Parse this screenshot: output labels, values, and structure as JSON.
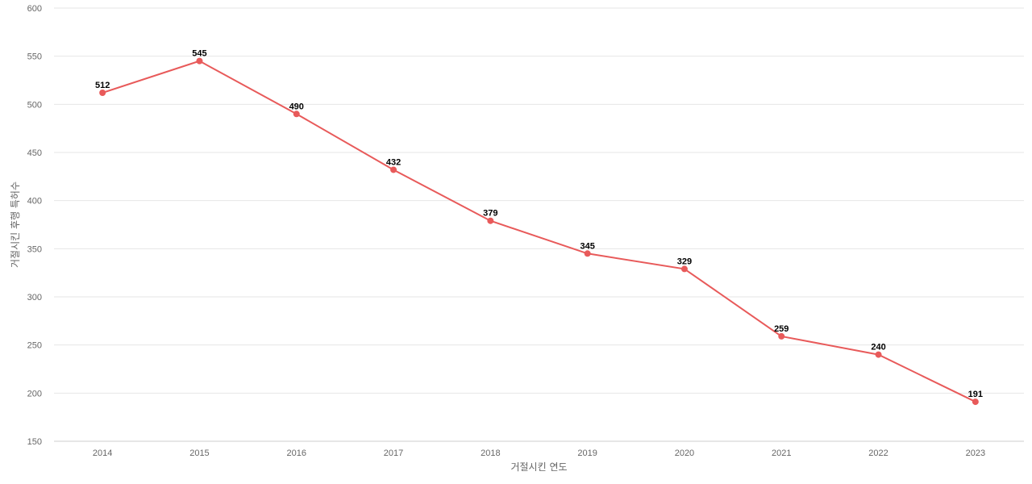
{
  "chart_data": {
    "type": "line",
    "title": "",
    "xlabel": "거절시킨 연도",
    "ylabel": "거절시킨 후행 특허수",
    "x": [
      "2014",
      "2015",
      "2016",
      "2017",
      "2018",
      "2019",
      "2020",
      "2021",
      "2022",
      "2023"
    ],
    "series": [
      {
        "values": [
          512,
          545,
          490,
          432,
          379,
          345,
          329,
          259,
          240,
          191
        ],
        "color": "#e85a5a"
      }
    ],
    "ylim": [
      150,
      600
    ],
    "yticks": [
      "150",
      "200",
      "250",
      "300",
      "350",
      "400",
      "450",
      "500",
      "550",
      "600"
    ],
    "grid": true,
    "legend": "none"
  }
}
